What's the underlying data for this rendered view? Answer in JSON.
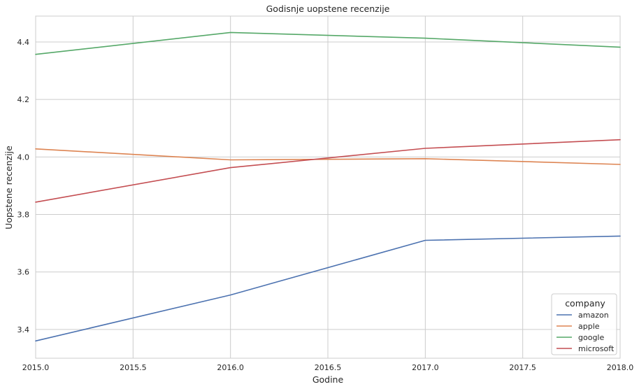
{
  "chart_data": {
    "type": "line",
    "title": "Godisnje uopstene recenzije",
    "xlabel": "Godine",
    "ylabel": "Uopstene recenzije",
    "xlim": [
      2015.0,
      2018.0
    ],
    "ylim": [
      3.3,
      4.49
    ],
    "xticks": [
      2015.0,
      2015.5,
      2016.0,
      2016.5,
      2017.0,
      2017.5,
      2018.0
    ],
    "xtick_labels": [
      "2015.0",
      "2015.5",
      "2016.0",
      "2016.5",
      "2017.0",
      "2017.5",
      "2018.0"
    ],
    "yticks": [
      3.4,
      3.6,
      3.8,
      4.0,
      4.2,
      4.4
    ],
    "ytick_labels": [
      "3.4",
      "3.6",
      "3.8",
      "4.0",
      "4.2",
      "4.4"
    ],
    "grid": true,
    "legend": {
      "title": "company",
      "placement": "bottom-right"
    },
    "x": [
      2015,
      2016,
      2017,
      2018
    ],
    "series": [
      {
        "name": "amazon",
        "color": "#4c72b0",
        "values": [
          3.36,
          3.52,
          3.71,
          3.725
        ]
      },
      {
        "name": "apple",
        "color": "#dd8452",
        "values": [
          4.028,
          3.99,
          3.994,
          3.974
        ]
      },
      {
        "name": "google",
        "color": "#55a868",
        "values": [
          4.357,
          4.433,
          4.413,
          4.382
        ]
      },
      {
        "name": "microsoft",
        "color": "#c44e52",
        "values": [
          3.843,
          3.963,
          4.03,
          4.06
        ]
      }
    ]
  }
}
